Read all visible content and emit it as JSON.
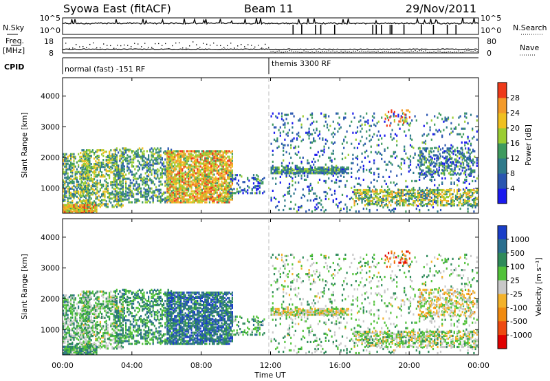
{
  "header": {
    "station": "Syowa East (fitACF)",
    "beam": "Beam 11",
    "date": "29/Nov/2011"
  },
  "strips": {
    "nsky_label": "N.Sky",
    "nsky_ticks": [
      "10^5",
      "10^0"
    ],
    "nsearch_label": "N.Search",
    "nsearch_ticks": [
      "10^5",
      "10^0"
    ],
    "freq_label_line1": "Freq.",
    "freq_label_line2": "[MHz]",
    "freq_ticks": [
      "18",
      "8"
    ],
    "nave_label": "Nave",
    "nave_ticks": [
      "80",
      "0"
    ],
    "cpid_label": "CPID",
    "cpid_segments": [
      {
        "label": "normal (fast) -151 RF",
        "start_hour": 0
      },
      {
        "label": "themis 3300 RF",
        "start_hour": 12
      }
    ]
  },
  "chart_data": [
    {
      "type": "heatmap",
      "name": "power-panel",
      "ylabel": "Slant Range [km]",
      "xlabel": "Time UT",
      "xlim": [
        0,
        24
      ],
      "ylim": [
        180,
        4600
      ],
      "yticks": [
        "1000",
        "2000",
        "3000",
        "4000"
      ],
      "ytick_values": [
        1000,
        2000,
        3000,
        4000
      ],
      "colorbar": {
        "label": "Power [dB]",
        "ticks": [
          "4",
          "8",
          "12",
          "16",
          "20",
          "24",
          "28"
        ],
        "range": [
          0,
          32
        ],
        "colors": [
          "#1a1aee",
          "#2a56b0",
          "#2f7a8a",
          "#3e9a5e",
          "#9acd32",
          "#f0c020",
          "#f39a2a",
          "#f07818",
          "#ee3a1a",
          "#e00000"
        ]
      }
    },
    {
      "type": "heatmap",
      "name": "velocity-panel",
      "ylabel": "Slant Range [km]",
      "xlabel": "Time UT",
      "xlim": [
        0,
        24
      ],
      "ylim": [
        180,
        4600
      ],
      "yticks": [
        "1000",
        "2000",
        "3000",
        "4000"
      ],
      "ytick_values": [
        1000,
        2000,
        3000,
        4000
      ],
      "colorbar": {
        "label": "Velocity [m s⁻¹]",
        "ticks": [
          "1000",
          "500",
          "100",
          "25",
          "-25",
          "-100",
          "-500",
          "-1000"
        ],
        "colors": [
          "#1a3ec8",
          "#2a6e8e",
          "#2e8a5a",
          "#52c23a",
          "#c8c8c8",
          "#f3b22a",
          "#f08a10",
          "#ee4a10",
          "#e00000"
        ]
      }
    }
  ],
  "time_axis": {
    "ticks": [
      "00:00",
      "04:00",
      "08:00",
      "12:00",
      "16:00",
      "20:00",
      "00:00"
    ],
    "tick_hours": [
      0,
      4,
      8,
      12,
      16,
      20,
      24
    ],
    "label": "Time UT"
  }
}
